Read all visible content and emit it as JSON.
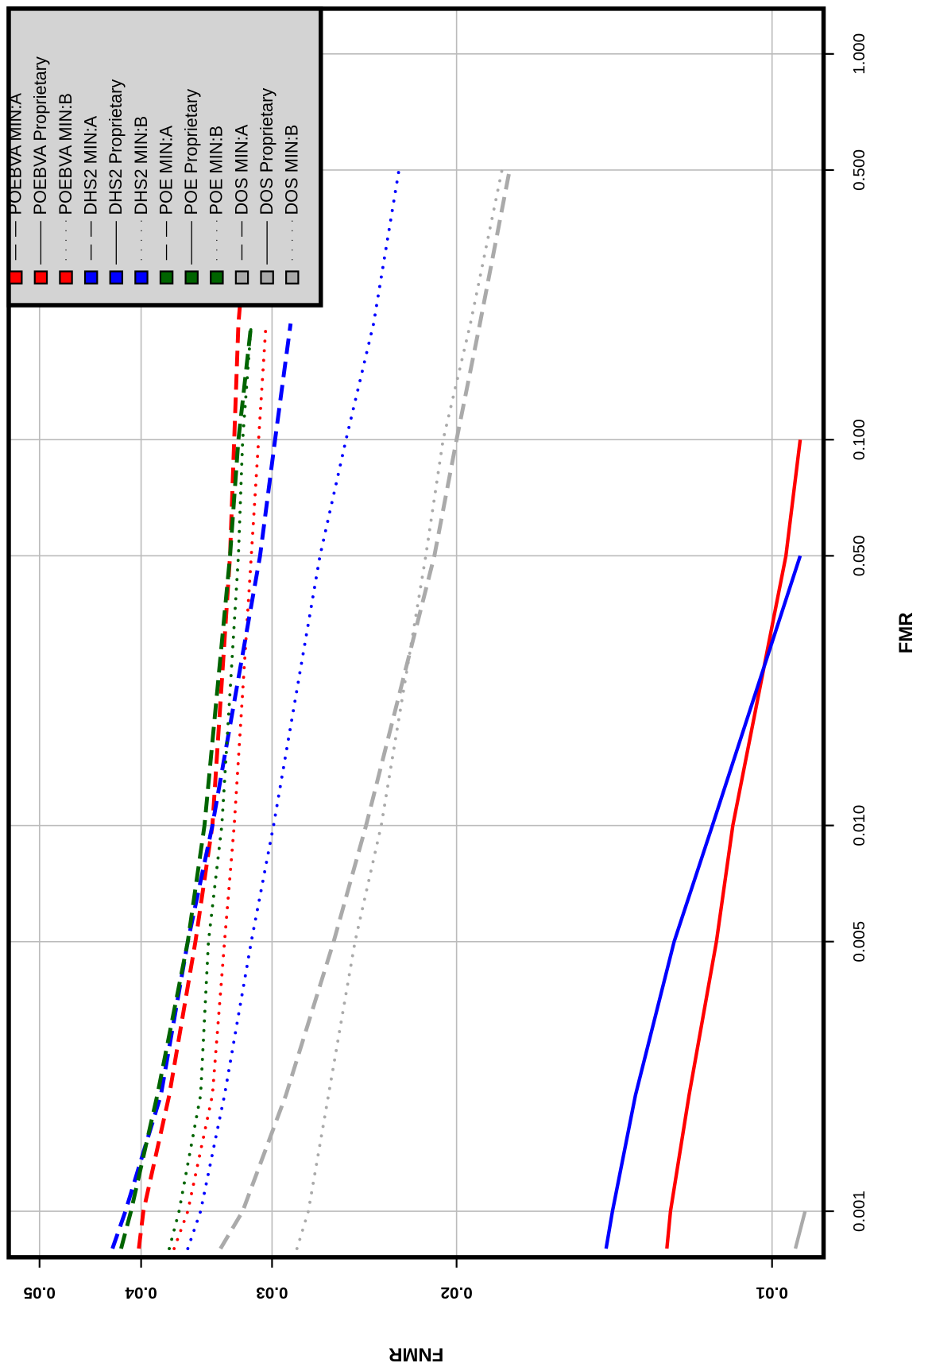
{
  "chart_data": {
    "type": "line",
    "x_label": "FNMR",
    "y_label": "FMR",
    "x_log": true,
    "y_log": true,
    "grid": true,
    "legend": "top-left",
    "xlim": [
      0.0535,
      0.00893
    ],
    "ylim": [
      1.31,
      0.00076
    ],
    "xticks": [
      0.05,
      0.04,
      0.03,
      0.02,
      0.01
    ],
    "yticks": [
      {
        "value": 1,
        "label": "1.000"
      },
      {
        "value": 0.5,
        "label": "0.500"
      },
      {
        "value": 0.1,
        "label": "0.100"
      },
      {
        "value": 0.05,
        "label": "0.050"
      },
      {
        "value": 0.01,
        "label": "0.010"
      },
      0.005,
      0.001
    ],
    "fmr": [
      0.0008,
      0.001,
      0.002,
      0.005,
      0.01,
      0.05,
      0.1,
      0.2,
      0.5
    ],
    "series": [
      {
        "name": "POEBVA MIN:A",
        "color": "#ff0000",
        "style": "dashed",
        "values": [
          0.0402,
          0.0398,
          0.0376,
          0.0355,
          0.0342,
          0.0329,
          0.0326,
          0.0323,
          0.0314
        ]
      },
      {
        "name": "POEBVA Proprietary",
        "color": "#ff0000",
        "style": "solid",
        "values": [
          0.0126,
          0.0125,
          0.012,
          0.0113,
          0.0109,
          0.0097,
          0.0094,
          null,
          null
        ]
      },
      {
        "name": "POEBVA MIN:B",
        "color": "#ff0000",
        "style": "dotted",
        "values": [
          0.0372,
          0.0361,
          0.0342,
          0.0333,
          0.0326,
          0.0314,
          0.0309,
          0.0304,
          null
        ]
      },
      {
        "name": "DHS2 MIN:A",
        "color": "#0000ff",
        "style": "dashed",
        "values": [
          0.0426,
          0.0414,
          0.0383,
          0.0361,
          0.0342,
          0.0308,
          0.0298,
          0.0288,
          null
        ]
      },
      {
        "name": "DHS2 Proprietary",
        "color": "#0000ff",
        "style": "solid",
        "values": [
          0.0144,
          0.0142,
          0.0135,
          0.0124,
          0.0114,
          0.0094,
          null,
          null,
          null
        ]
      },
      {
        "name": "DHS2 MIN:B",
        "color": "#0000ff",
        "style": "dotted",
        "values": [
          0.0361,
          0.0351,
          0.0333,
          0.0314,
          0.0299,
          0.027,
          0.0255,
          0.024,
          0.0227
        ]
      },
      {
        "name": "POE MIN:A",
        "color": "#006400",
        "style": "dashed",
        "values": [
          0.0418,
          0.0409,
          0.0386,
          0.0361,
          0.0348,
          0.0329,
          0.0323,
          0.0314,
          null
        ]
      },
      {
        "name": "POE Proprietary",
        "color": "#006400",
        "style": "solid",
        "values": [
          null,
          null,
          null,
          null,
          null,
          null,
          null,
          null,
          null
        ]
      },
      {
        "name": "POE MIN:B",
        "color": "#006400",
        "style": "dotted",
        "values": [
          0.0376,
          0.0368,
          0.0351,
          0.0345,
          0.0335,
          0.0323,
          0.032,
          0.0314,
          null
        ]
      },
      {
        "name": "DOS MIN:A",
        "color": "#aaaaaa",
        "style": "dashed",
        "values": [
          0.0336,
          0.032,
          0.0291,
          0.0262,
          0.0244,
          0.021,
          0.02,
          0.019,
          0.0178
        ]
      },
      {
        "name": "DOS Proprietary",
        "color": "#aaaaaa",
        "style": "solid",
        "values": [
          0.0095,
          0.0093,
          null,
          null,
          null,
          null,
          null,
          null,
          null
        ]
      },
      {
        "name": "DOS MIN:B",
        "color": "#aaaaaa",
        "style": "dotted",
        "values": [
          0.0284,
          0.0277,
          0.0265,
          0.025,
          0.0236,
          0.0214,
          0.0206,
          0.0194,
          0.0181
        ]
      }
    ]
  }
}
